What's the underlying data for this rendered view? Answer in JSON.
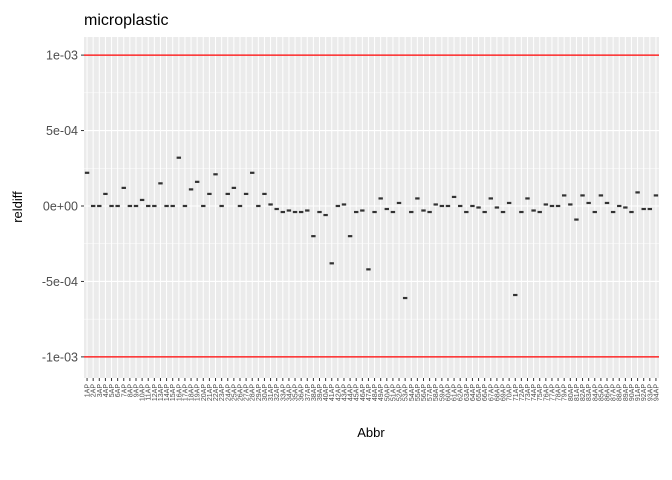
{
  "chart_data": {
    "type": "scatter",
    "title": "microplastic",
    "xlabel": "Abbr",
    "ylabel": "reldiff",
    "ylim": [
      -0.00114,
      0.00112
    ],
    "yticks": [
      -0.001,
      -0.0005,
      0,
      0.0005,
      0.001
    ],
    "ytick_labels": [
      "-1e-03",
      "-5e-04",
      "0e+00",
      "5e-04",
      "1e-03"
    ],
    "hlines": [
      0.001,
      -0.001
    ],
    "hline_color": "#ff0000",
    "point_color": "#333333",
    "background_color": "#ebebeb",
    "grid_color": "#ffffff",
    "grid": true,
    "legend": "none",
    "categories": [
      "1AP",
      "2AP",
      "3AP",
      "4AP",
      "5AP",
      "6AP",
      "7AP",
      "8AP",
      "9AP",
      "10AP",
      "11AP",
      "12AP",
      "13AP",
      "14AP",
      "15AP",
      "16AP",
      "17AP",
      "18AP",
      "19AP",
      "20AP",
      "21AP",
      "22AP",
      "23AP",
      "24AP",
      "25AP",
      "26AP",
      "27AP",
      "28AP",
      "29AP",
      "30AP",
      "31AP",
      "32AP",
      "33AP",
      "34AP",
      "35AP",
      "36AP",
      "37AP",
      "38AP",
      "39AP",
      "40AP",
      "41AP",
      "42AP",
      "43AP",
      "44AP",
      "45AP",
      "46AP",
      "47AP",
      "48AP",
      "49AP",
      "50AP",
      "51AP",
      "52AP",
      "53AP",
      "54AP",
      "55AP",
      "56AP",
      "57AP",
      "58AP",
      "59AP",
      "60AP",
      "61AP",
      "62AP",
      "63AP",
      "64AP",
      "65AP",
      "66AP",
      "67AP",
      "68AP",
      "69AP",
      "70AP",
      "71AP",
      "72AP",
      "73AP",
      "74AP",
      "75AP",
      "76AP",
      "77AP",
      "78AP",
      "79AP",
      "80AP",
      "81AP",
      "82AP",
      "83AP",
      "84AP",
      "85AP",
      "86AP",
      "87AP",
      "88AP",
      "89AP",
      "90AP",
      "91AP",
      "92AP",
      "93AP",
      "94AP"
    ],
    "values": [
      0.00022,
      0,
      0,
      8e-05,
      0,
      0,
      0.00012,
      0,
      0,
      4e-05,
      0,
      0,
      0.00015,
      0,
      0,
      0.00032,
      0,
      0.00011,
      0.00016,
      0,
      8e-05,
      0.00021,
      0,
      8e-05,
      0.00012,
      0,
      8e-05,
      0.00022,
      0,
      8e-05,
      1e-05,
      -2e-05,
      -4e-05,
      -3e-05,
      -4e-05,
      -4e-05,
      -3e-05,
      -0.0002,
      -4e-05,
      -6e-05,
      -0.00038,
      0,
      1e-05,
      -0.0002,
      -4e-05,
      -3e-05,
      -0.00042,
      -4e-05,
      5e-05,
      -2e-05,
      -4e-05,
      2e-05,
      -0.00061,
      -4e-05,
      5e-05,
      -3e-05,
      -4e-05,
      1e-05,
      0,
      0,
      6e-05,
      0,
      -4e-05,
      0,
      -1e-05,
      -4e-05,
      5e-05,
      -1e-05,
      -4e-05,
      2e-05,
      -0.00059,
      -4e-05,
      5e-05,
      -3e-05,
      -4e-05,
      1e-05,
      0,
      0,
      7e-05,
      1e-05,
      -9e-05,
      7e-05,
      2e-05,
      -4e-05,
      7e-05,
      2e-05,
      -4e-05,
      0,
      -1e-05,
      -4e-05,
      9e-05,
      -2e-05,
      -2e-05,
      7e-05
    ]
  }
}
